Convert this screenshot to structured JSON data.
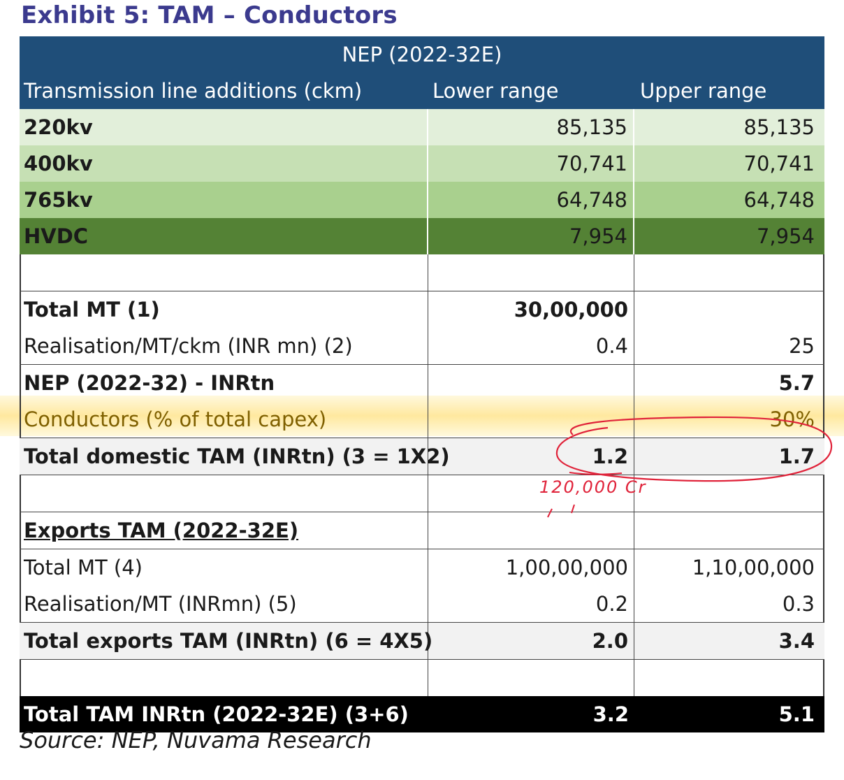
{
  "title": "Exhibit 5: TAM – Conductors",
  "header": {
    "top": "NEP (2022-32E)",
    "col1": "Transmission line additions (ckm)",
    "col2": "Lower range",
    "col3": "Upper range"
  },
  "voltage_rows": [
    {
      "label": "220kv",
      "lower": "85,135",
      "upper": "85,135",
      "color": "#e2efda"
    },
    {
      "label": "400kv",
      "lower": "70,741",
      "upper": "70,741",
      "color": "#c6e0b4"
    },
    {
      "label": "765kv",
      "lower": "64,748",
      "upper": "64,748",
      "color": "#a9d08e"
    },
    {
      "label": "HVDC",
      "lower": "7,954",
      "upper": "7,954",
      "color": "#548235"
    }
  ],
  "domestic": {
    "total_mt": {
      "label": "Total MT (1)",
      "lower": "30,00,000",
      "upper": ""
    },
    "realisation": {
      "label": "Realisation/MT/ckm (INR mn) (2)",
      "lower": "0.4",
      "upper": "25"
    },
    "nep": {
      "label": "NEP (2022-32) - INRtn",
      "lower": "",
      "upper": "5.7"
    },
    "conductors": {
      "label": "Conductors (% of total capex)",
      "lower": "",
      "upper": "30%"
    },
    "total_tam": {
      "label": "Total domestic TAM (INRtn) (3 = 1X2)",
      "lower": "1.2",
      "upper": "1.7"
    }
  },
  "handwritten_note": "120,000 Cr",
  "exports": {
    "heading": "Exports TAM (2022-32E)",
    "total_mt": {
      "label": "Total MT (4)",
      "lower": "1,00,00,000",
      "upper": "1,10,00,000"
    },
    "realisation": {
      "label": "Realisation/MT (INRmn) (5)",
      "lower": "0.2",
      "upper": "0.3"
    },
    "total_tam": {
      "label": "Total exports TAM (INRtn) (6 = 4X5)",
      "lower": "2.0",
      "upper": "3.4"
    }
  },
  "grand_total": {
    "label": "Total TAM INRtn (2022-32E) (3+6)",
    "lower": "3.2",
    "upper": "5.1"
  },
  "source": "Source: NEP, Nuvama Research",
  "colors": {
    "header_bg": "#1f4e79",
    "title": "#3b3a8e",
    "highlight": "#ffd650",
    "annotation": "#e0233a"
  }
}
